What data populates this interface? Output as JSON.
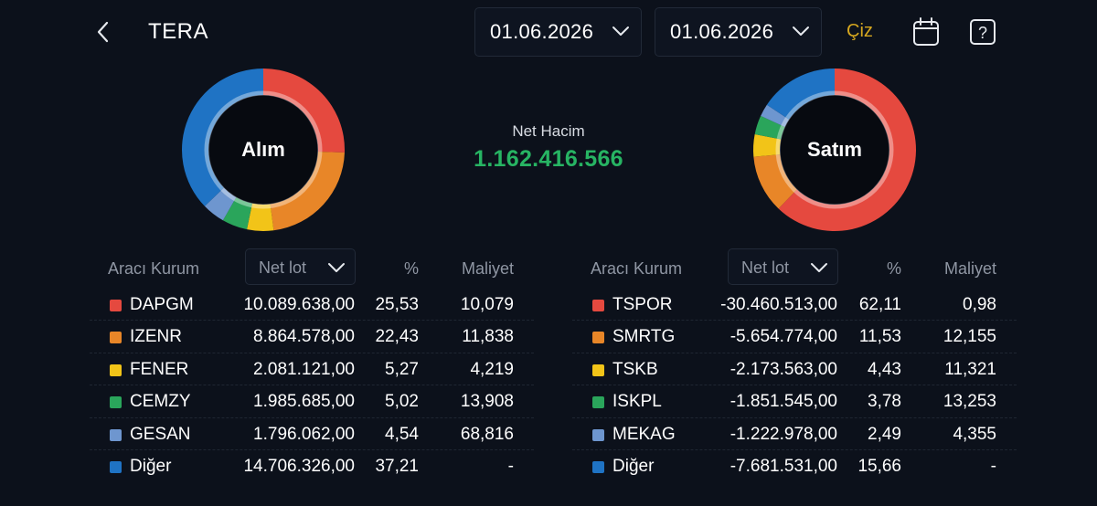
{
  "header": {
    "title": "TERA",
    "start_date": "01.06.2026",
    "end_date": "01.06.2026",
    "draw_label": "Çiz"
  },
  "summary": {
    "net_volume_label": "Net Hacim",
    "net_volume_value": "1.162.416.566"
  },
  "colors": {
    "background": "#0c111b",
    "positive": "#27b463",
    "accent": "#d6a71f",
    "slice": [
      "#e5493f",
      "#e88628",
      "#f2c418",
      "#2aa55b",
      "#6e96cf",
      "#1f73c4"
    ]
  },
  "buy": {
    "chart_label": "Alım",
    "columns": {
      "broker": "Aracı Kurum",
      "metric": "Net lot",
      "pct": "%",
      "cost": "Maliyet"
    },
    "rows": [
      {
        "name": "DAPGM",
        "lot": "10.089.638,00",
        "pct": "25,53",
        "cost": "10,079"
      },
      {
        "name": "IZENR",
        "lot": "8.864.578,00",
        "pct": "22,43",
        "cost": "11,838"
      },
      {
        "name": "FENER",
        "lot": "2.081.121,00",
        "pct": "5,27",
        "cost": "4,219"
      },
      {
        "name": "CEMZY",
        "lot": "1.985.685,00",
        "pct": "5,02",
        "cost": "13,908"
      },
      {
        "name": "GESAN",
        "lot": "1.796.062,00",
        "pct": "4,54",
        "cost": "68,816"
      },
      {
        "name": "Diğer",
        "lot": "14.706.326,00",
        "pct": "37,21",
        "cost": "-"
      }
    ]
  },
  "sell": {
    "chart_label": "Satım",
    "columns": {
      "broker": "Aracı Kurum",
      "metric": "Net lot",
      "pct": "%",
      "cost": "Maliyet"
    },
    "rows": [
      {
        "name": "TSPOR",
        "lot": "-30.460.513,00",
        "pct": "62,11",
        "cost": "0,98"
      },
      {
        "name": "SMRTG",
        "lot": "-5.654.774,00",
        "pct": "11,53",
        "cost": "12,155"
      },
      {
        "name": "TSKB",
        "lot": "-2.173.563,00",
        "pct": "4,43",
        "cost": "11,321"
      },
      {
        "name": "ISKPL",
        "lot": "-1.851.545,00",
        "pct": "3,78",
        "cost": "13,253"
      },
      {
        "name": "MEKAG",
        "lot": "-1.222.978,00",
        "pct": "2,49",
        "cost": "4,355"
      },
      {
        "name": "Diğer",
        "lot": "-7.681.531,00",
        "pct": "15,66",
        "cost": "-"
      }
    ]
  },
  "icons": {
    "back": "chevron-left-icon",
    "date_dropdown": "chevron-down-icon",
    "calendar": "calendar-icon",
    "help": "help-icon"
  }
}
